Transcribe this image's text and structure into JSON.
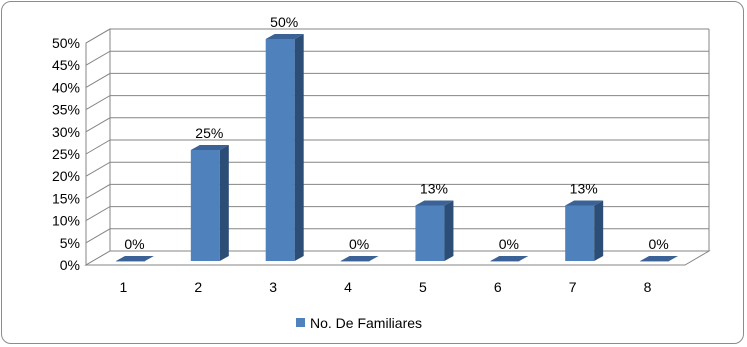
{
  "chart_data": {
    "type": "bar",
    "categories": [
      "1",
      "2",
      "3",
      "4",
      "5",
      "6",
      "7",
      "8"
    ],
    "series": [
      {
        "name": "No. De Familiares",
        "values": [
          0,
          25,
          50,
          0,
          12.5,
          0,
          12.5,
          0
        ],
        "data_labels": [
          "0%",
          "25%",
          "50%",
          "0%",
          "13%",
          "0%",
          "13%",
          "0%"
        ],
        "color": "#4f81bd"
      }
    ],
    "y_ticks": [
      "0%",
      "5%",
      "10%",
      "15%",
      "20%",
      "25%",
      "30%",
      "35%",
      "40%",
      "45%",
      "50%"
    ],
    "ylim": [
      0,
      50
    ],
    "grid": true,
    "legend_position": "bottom",
    "three_d": true,
    "title": "",
    "xlabel": "",
    "ylabel": ""
  }
}
